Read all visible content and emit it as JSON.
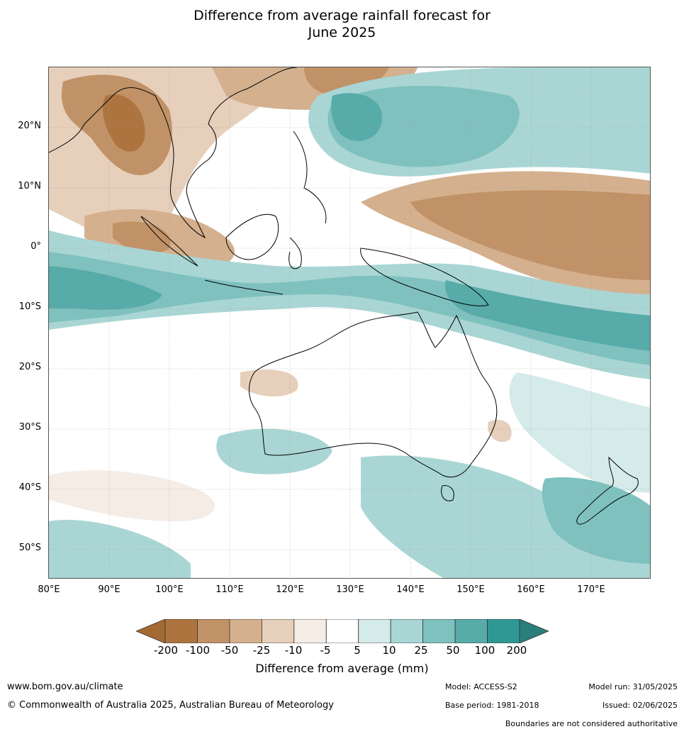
{
  "title": {
    "line1": "Difference from average rainfall forecast for",
    "line2": "June 2025"
  },
  "map": {
    "lat_labels": [
      "20°N",
      "10°N",
      "0°",
      "10°S",
      "20°S",
      "30°S",
      "40°S",
      "50°S"
    ],
    "lon_labels": [
      "80°E",
      "90°E",
      "100°E",
      "110°E",
      "120°E",
      "130°E",
      "140°E",
      "150°E",
      "160°E",
      "170°E"
    ]
  },
  "colorbar": {
    "ticks": [
      "-200",
      "-100",
      "-50",
      "-25",
      "-10",
      "-5",
      "5",
      "10",
      "25",
      "50",
      "100",
      "200"
    ],
    "colors": [
      "#a36a33",
      "#ae743f",
      "#c19267",
      "#d4b08e",
      "#e6cfbb",
      "#f5ece6",
      "#ffffff",
      "#d4ebe9",
      "#a9d6d4",
      "#7fc1bf",
      "#57aba9",
      "#2f9894",
      "#2a7e7b"
    ],
    "label": "Difference from average (mm)"
  },
  "footer": {
    "website": "www.bom.gov.au/climate",
    "copyright": "© Commonwealth of Australia 2025, Australian Bureau of Meteorology",
    "model": "Model: ACCESS-S2",
    "base_period": "Base period: 1981-2018",
    "model_run": "Model run: 31/05/2025",
    "issued": "Issued: 02/06/2025",
    "disclaimer": "Boundaries are not considered authoritative"
  }
}
